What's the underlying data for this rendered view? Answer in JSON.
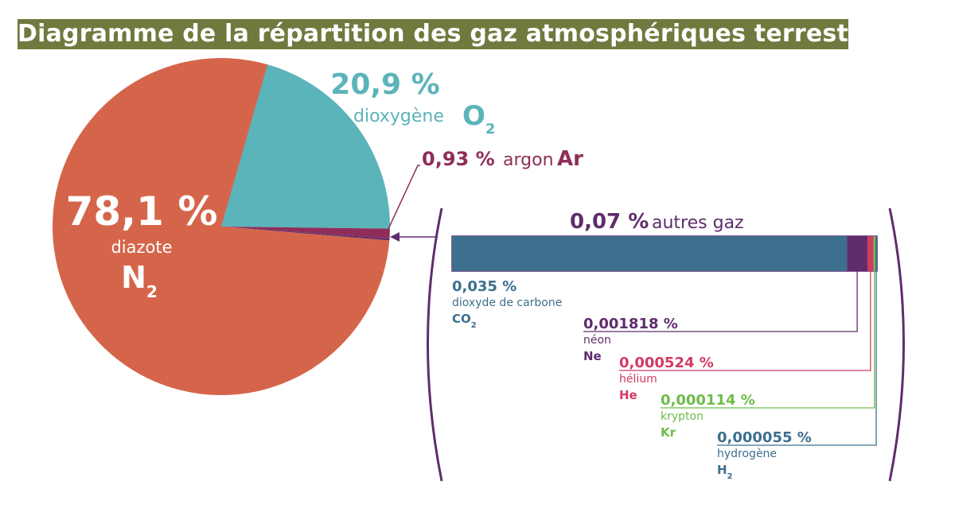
{
  "title": "Diagramme de la répartition des gaz atmosphériques terrestres",
  "colors": {
    "title_bg": "#6f7a3e",
    "nitrogen": "#d5654a",
    "oxygen": "#5bb4ba",
    "argon": "#8e2e58",
    "other": "#5f2d6b",
    "co2": "#3d6f8e",
    "neon": "#5f2d6b",
    "helium": "#d23b63",
    "krypton": "#6fbc4a",
    "hydrogen": "#3d6f8e"
  },
  "chart_data": [
    {
      "type": "pie",
      "slices": [
        {
          "key": "nitrogen",
          "value": 78.1,
          "percent_label": "78,1 %",
          "name": "diazote",
          "formula": "N",
          "subscript": "2"
        },
        {
          "key": "oxygen",
          "value": 20.9,
          "percent_label": "20,9 %",
          "name": "dioxygène",
          "formula": "O",
          "subscript": "2"
        },
        {
          "key": "argon",
          "value": 0.93,
          "percent_label": "0,93 %",
          "name": "argon",
          "formula": "Ar",
          "subscript": ""
        },
        {
          "key": "other",
          "value": 0.07,
          "percent_label": "0,07 %",
          "name": "autres gaz",
          "formula": "",
          "subscript": ""
        }
      ]
    },
    {
      "type": "bar",
      "orientation": "horizontal-stacked",
      "title_percent": "0,07 %",
      "title_name": "autres gaz",
      "segments": [
        {
          "key": "co2",
          "value": 0.035,
          "percent_label": "0,035 %",
          "name": "dioxyde de carbone",
          "formula": "CO",
          "subscript": "2"
        },
        {
          "key": "neon",
          "value": 0.001818,
          "percent_label": "0,001818 %",
          "name": "néon",
          "formula": "Ne",
          "subscript": ""
        },
        {
          "key": "helium",
          "value": 0.000524,
          "percent_label": "0,000524 %",
          "name": "hélium",
          "formula": "He",
          "subscript": ""
        },
        {
          "key": "krypton",
          "value": 0.000114,
          "percent_label": "0,000114 %",
          "name": "krypton",
          "formula": "Kr",
          "subscript": ""
        },
        {
          "key": "hydrogen",
          "value": 5.5e-05,
          "percent_label": "0,000055 %",
          "name": "hydrogène",
          "formula": "H",
          "subscript": "2"
        }
      ]
    }
  ]
}
